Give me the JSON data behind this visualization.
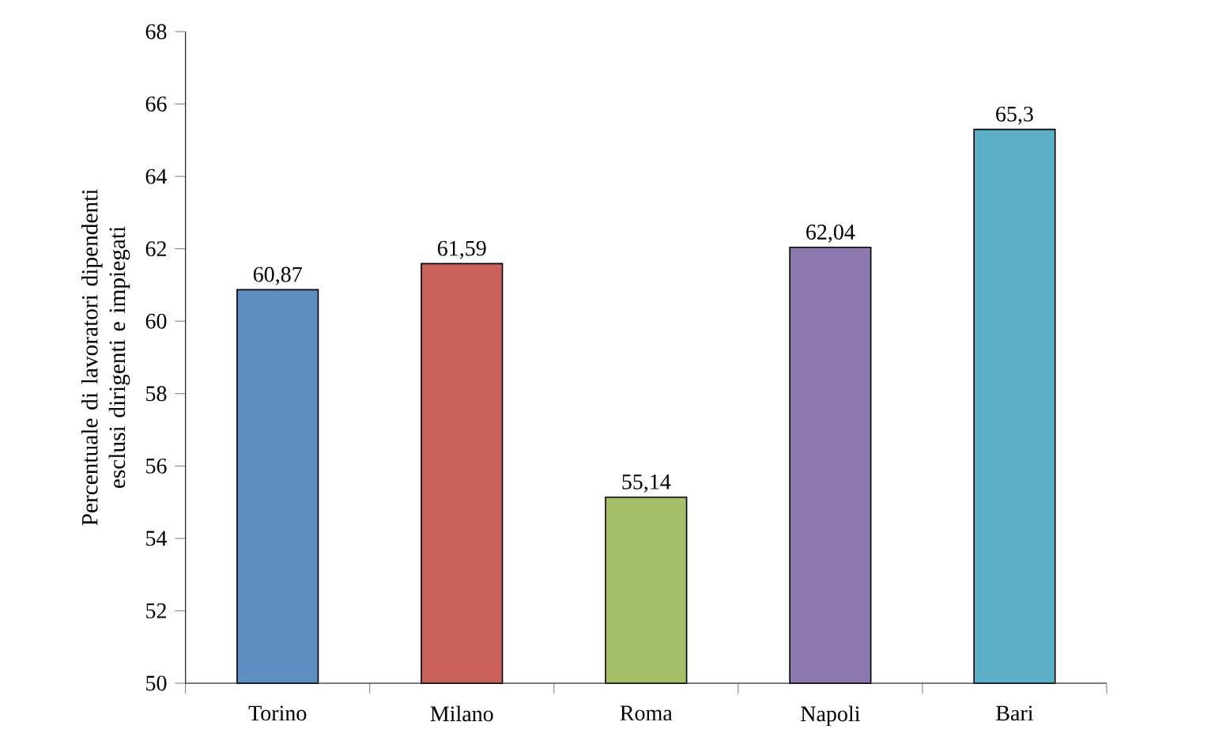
{
  "chart_data": {
    "type": "bar",
    "ylabel": "Percentuale di lavoratori dipendenti esclusi dirigenti e impiegati",
    "categories": [
      "Torino",
      "Milano",
      "Roma",
      "Napoli",
      "Bari"
    ],
    "values": [
      60.87,
      61.59,
      55.14,
      62.04,
      65.3
    ],
    "value_labels": [
      "60,87",
      "61,59",
      "55,14",
      "62,04",
      "65,3"
    ],
    "colors": [
      "#5f8fc2",
      "#c9625c",
      "#a8bf6a",
      "#8b78ad",
      "#5aafc7"
    ],
    "ylim": [
      50,
      68
    ],
    "yticks": [
      50,
      52,
      54,
      56,
      58,
      60,
      62,
      64,
      66,
      68
    ],
    "grid": false
  }
}
